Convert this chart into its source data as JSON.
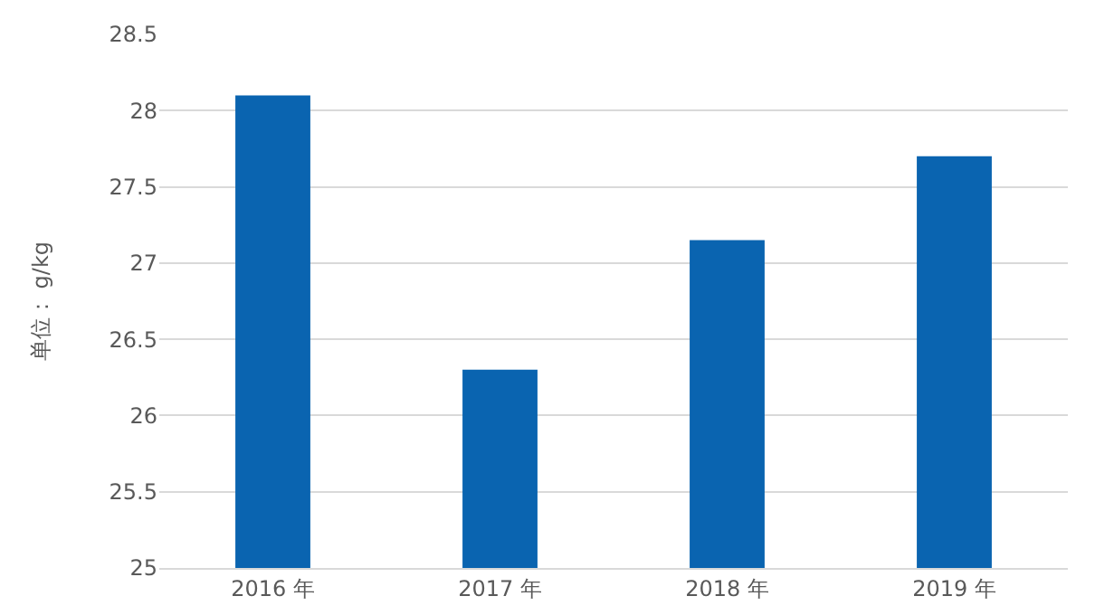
{
  "chart_data": {
    "type": "bar",
    "ylabel": "单位： g/kg",
    "categories": [
      "2016 年",
      "2017 年",
      "2018 年",
      "2019 年"
    ],
    "values": [
      28.1,
      26.3,
      27.15,
      27.7
    ],
    "color": "#0a64b0",
    "ylim": [
      25,
      28.5
    ],
    "yticks": [
      25,
      25.5,
      26,
      26.5,
      27,
      27.5,
      28,
      28.5
    ],
    "grid": "y"
  }
}
